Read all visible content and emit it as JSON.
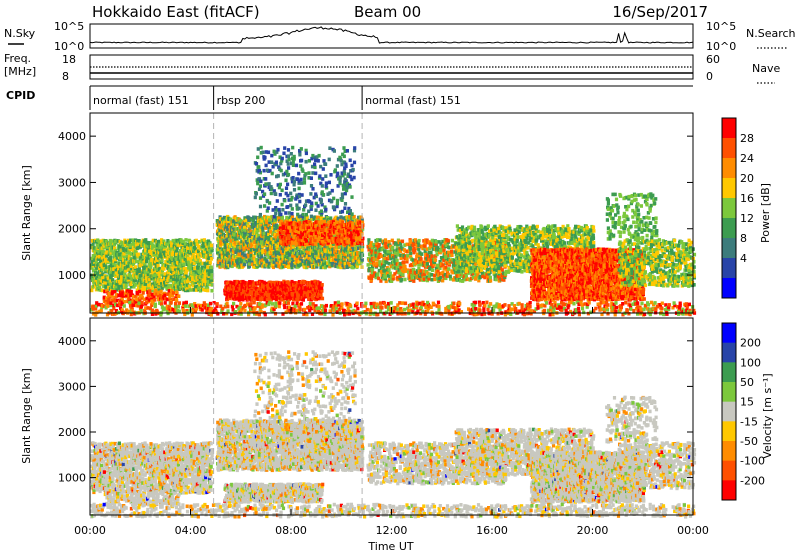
{
  "header": {
    "station": "Hokkaido East (fitACF)",
    "beam": "Beam 00",
    "date": "16/Sep/2017"
  },
  "top_panels": {
    "nsky_label": "N.Sky",
    "nsky_ticks": [
      "10^5",
      "10^0"
    ],
    "nsearch_label": "N.Search",
    "nsearch_ticks": [
      "10^5",
      "10^0"
    ],
    "freq_label": "Freq.",
    "freq_unit": "[MHz]",
    "freq_ticks": [
      "18",
      "8"
    ],
    "nave_label": "Nave",
    "nave_ticks": [
      "60",
      "0"
    ],
    "cpid_label": "CPID"
  },
  "cpid_segments": [
    {
      "label": "normal (fast) 151",
      "start_hour": 0
    },
    {
      "label": "rbsp 200",
      "start_hour": 4.92
    },
    {
      "label": "normal (fast) 151",
      "start_hour": 10.83
    }
  ],
  "colors": {
    "power": [
      "#0000ff",
      "#2844a8",
      "#3c7c7c",
      "#3c9c50",
      "#7cc83c",
      "#ffc800",
      "#ff8c00",
      "#ff5000",
      "#ff0000"
    ],
    "velocity": [
      "#ff0000",
      "#ff5000",
      "#ff8c00",
      "#ffc800",
      "#c8c8c0",
      "#7cc83c",
      "#3c9c50",
      "#2844a8",
      "#0000ff"
    ]
  },
  "chart_data": [
    {
      "type": "heatmap",
      "title": "",
      "ylabel": "Slant Range [km]",
      "xlabel": "Time UT",
      "xlim": [
        0,
        24
      ],
      "ylim": [
        180,
        4500
      ],
      "x_ticks": [
        "00:00",
        "04:00",
        "08:00",
        "12:00",
        "16:00",
        "20:00",
        "00:00"
      ],
      "y_ticks": [
        "1000",
        "2000",
        "3000",
        "4000"
      ],
      "colorbar": {
        "label": "Power [dB]",
        "ticks": [
          "28",
          "24",
          "20",
          "16",
          "12",
          "8",
          "4"
        ],
        "range": [
          0,
          30
        ]
      }
    },
    {
      "type": "heatmap",
      "title": "",
      "ylabel": "Slant Range [km]",
      "xlabel": "Time UT",
      "xlim": [
        0,
        24
      ],
      "ylim": [
        180,
        4500
      ],
      "x_ticks": [
        "00:00",
        "04:00",
        "08:00",
        "12:00",
        "16:00",
        "20:00",
        "00:00"
      ],
      "y_ticks": [
        "1000",
        "2000",
        "3000",
        "4000"
      ],
      "colorbar": {
        "label": "Velocity [m s⁻¹]",
        "ticks": [
          "200",
          "100",
          "50",
          "15",
          "-15",
          "-50",
          "-100",
          "-200"
        ],
        "range": [
          -250,
          250
        ]
      }
    }
  ]
}
